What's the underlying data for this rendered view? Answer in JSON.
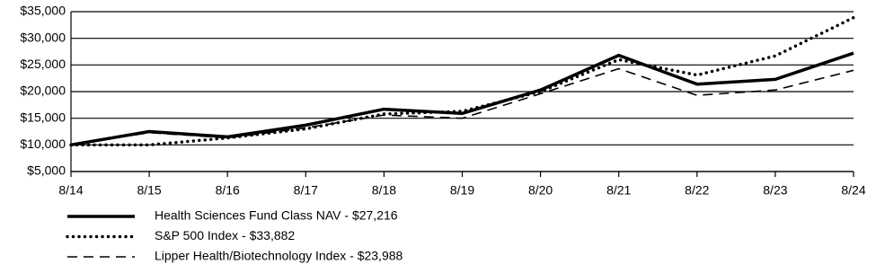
{
  "chart_data": {
    "type": "line",
    "categories": [
      "8/14",
      "8/15",
      "8/16",
      "8/17",
      "8/18",
      "8/19",
      "8/20",
      "8/21",
      "8/22",
      "8/23",
      "8/24"
    ],
    "series": [
      {
        "name": "Health Sciences Fund Class NAV - $27,216",
        "color": "#000000",
        "line_style": "solid",
        "values": [
          10000,
          12500,
          11500,
          13700,
          16700,
          15900,
          20300,
          26800,
          21400,
          22300,
          27216
        ]
      },
      {
        "name": "S&P 500 Index - $33,882",
        "color": "#000000",
        "line_style": "dotted",
        "values": [
          10000,
          10000,
          11300,
          13000,
          15800,
          16300,
          20000,
          26000,
          23100,
          26700,
          33882
        ]
      },
      {
        "name": "Lipper Health/Biotechnology Index - $23,988",
        "color": "#000000",
        "line_style": "dashed",
        "values": [
          10000,
          12300,
          11300,
          13200,
          15600,
          15000,
          19600,
          24300,
          19300,
          20300,
          23988
        ]
      }
    ],
    "ylim": [
      5000,
      35000
    ],
    "yticks": [
      {
        "value": 5000,
        "label": "$5,000"
      },
      {
        "value": 10000,
        "label": "$10,000"
      },
      {
        "value": 15000,
        "label": "$15,000"
      },
      {
        "value": 20000,
        "label": "$20,000"
      },
      {
        "value": 25000,
        "label": "$25,000"
      },
      {
        "value": 30000,
        "label": "$30,000"
      },
      {
        "value": 35000,
        "label": "$35,000"
      }
    ],
    "grid": true,
    "legend": "bottom"
  }
}
